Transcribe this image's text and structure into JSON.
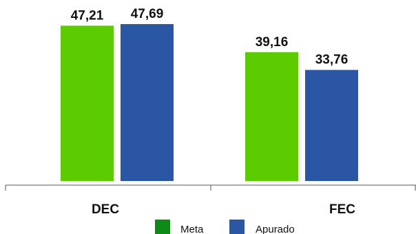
{
  "chart_data": {
    "type": "bar",
    "categories": [
      "DEC",
      "FEC"
    ],
    "series": [
      {
        "name": "Meta",
        "values": [
          47.21,
          39.16
        ],
        "labels": [
          "47,21",
          "39,16"
        ],
        "color": "#5ccc00"
      },
      {
        "name": "Apurado",
        "values": [
          47.69,
          33.76
        ],
        "labels": [
          "47,69",
          "33,76"
        ],
        "color": "#2a56a3"
      }
    ],
    "ylim": [
      0,
      50
    ],
    "grid": false,
    "legend_position": "bottom",
    "legend_swatch_colors": [
      "#0e8a16",
      "#2a56a3"
    ]
  }
}
